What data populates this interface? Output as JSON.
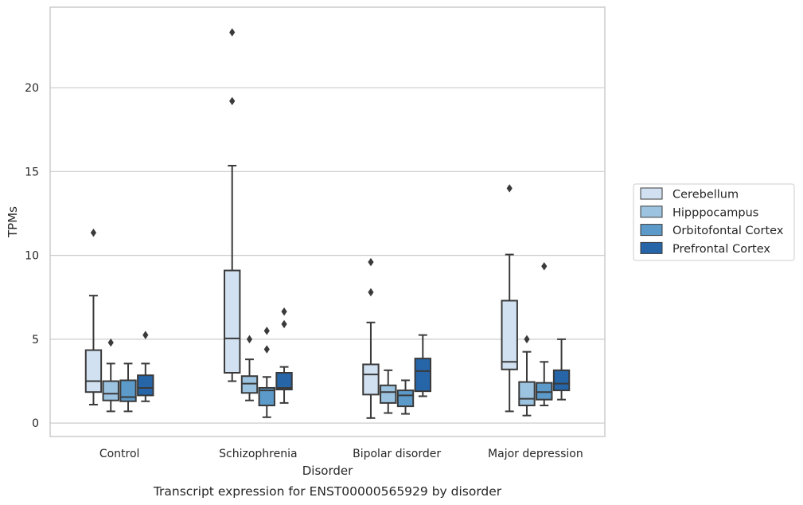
{
  "chart_data": {
    "type": "box",
    "xlabel": "Disorder",
    "ylabel": "TPMs",
    "caption": "Transcript expression for ENST00000565929 by disorder",
    "categories": [
      "Control",
      "Schizophrenia",
      "Bipolar disorder",
      "Major depression"
    ],
    "yticks": [
      0,
      5,
      10,
      15,
      20
    ],
    "ylim": [
      -0.8,
      24.8
    ],
    "grid": "horizontal",
    "legend_position": "right",
    "series": [
      {
        "name": "Cerebellum",
        "color": "#d2e1f1",
        "boxes": [
          {
            "whisker_low": 1.1,
            "q1": 1.85,
            "median": 2.5,
            "q3": 4.35,
            "whisker_high": 7.6,
            "outliers": [
              11.35
            ]
          },
          {
            "whisker_low": 2.5,
            "q1": 3.0,
            "median": 5.05,
            "q3": 9.1,
            "whisker_high": 15.35,
            "outliers": [
              19.2,
              23.3
            ]
          },
          {
            "whisker_low": 0.3,
            "q1": 1.7,
            "median": 2.9,
            "q3": 3.5,
            "whisker_high": 6.0,
            "outliers": [
              7.8,
              9.6
            ]
          },
          {
            "whisker_low": 0.7,
            "q1": 3.2,
            "median": 3.65,
            "q3": 7.3,
            "whisker_high": 10.05,
            "outliers": [
              14.0
            ]
          }
        ]
      },
      {
        "name": "Hipppocampus",
        "color": "#9cc3df",
        "boxes": [
          {
            "whisker_low": 0.7,
            "q1": 1.35,
            "median": 1.75,
            "q3": 2.5,
            "whisker_high": 3.55,
            "outliers": [
              4.8
            ]
          },
          {
            "whisker_low": 1.35,
            "q1": 1.8,
            "median": 2.35,
            "q3": 2.8,
            "whisker_high": 3.8,
            "outliers": [
              5.0
            ]
          },
          {
            "whisker_low": 0.6,
            "q1": 1.2,
            "median": 1.85,
            "q3": 2.25,
            "whisker_high": 3.15,
            "outliers": []
          },
          {
            "whisker_low": 0.45,
            "q1": 1.05,
            "median": 1.45,
            "q3": 2.45,
            "whisker_high": 4.25,
            "outliers": [
              5.0
            ]
          }
        ]
      },
      {
        "name": "Orbitofontal Cortex",
        "color": "#5b9ac9",
        "boxes": [
          {
            "whisker_low": 0.7,
            "q1": 1.3,
            "median": 1.55,
            "q3": 2.55,
            "whisker_high": 3.55,
            "outliers": []
          },
          {
            "whisker_low": 0.35,
            "q1": 1.05,
            "median": 1.95,
            "q3": 2.1,
            "whisker_high": 2.75,
            "outliers": [
              4.4,
              5.5
            ]
          },
          {
            "whisker_low": 0.55,
            "q1": 1.0,
            "median": 1.65,
            "q3": 1.95,
            "whisker_high": 2.55,
            "outliers": []
          },
          {
            "whisker_low": 1.05,
            "q1": 1.4,
            "median": 1.85,
            "q3": 2.4,
            "whisker_high": 3.65,
            "outliers": [
              9.35
            ]
          }
        ]
      },
      {
        "name": "Prefrontal Cortex",
        "color": "#2565a8",
        "boxes": [
          {
            "whisker_low": 1.3,
            "q1": 1.65,
            "median": 2.1,
            "q3": 2.85,
            "whisker_high": 3.55,
            "outliers": [
              5.25
            ]
          },
          {
            "whisker_low": 1.2,
            "q1": 2.0,
            "median": 2.1,
            "q3": 3.0,
            "whisker_high": 3.35,
            "outliers": [
              5.9,
              6.65
            ]
          },
          {
            "whisker_low": 1.6,
            "q1": 1.9,
            "median": 3.1,
            "q3": 3.85,
            "whisker_high": 5.25,
            "outliers": []
          },
          {
            "whisker_low": 1.4,
            "q1": 1.95,
            "median": 2.35,
            "q3": 3.15,
            "whisker_high": 5.0,
            "outliers": []
          }
        ]
      }
    ]
  }
}
